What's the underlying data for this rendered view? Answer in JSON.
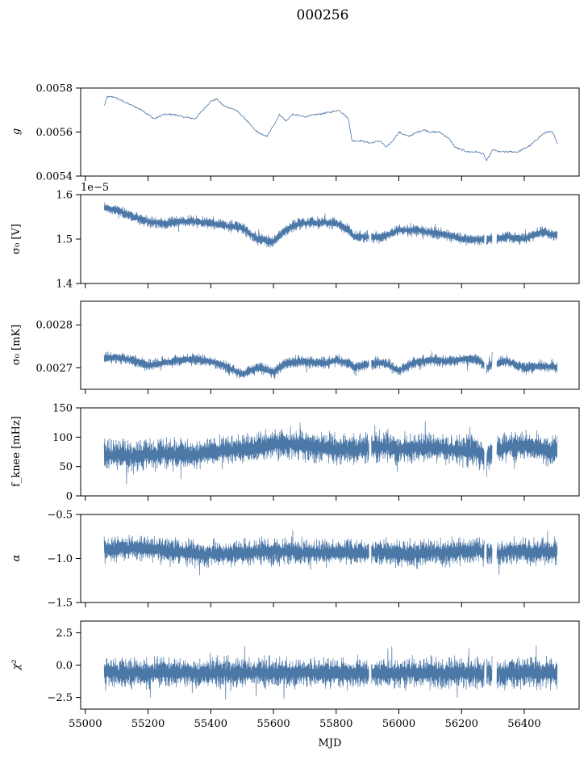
{
  "figure": {
    "title": "000256",
    "xlabel": "MJD"
  },
  "chart_data": [
    {
      "type": "line",
      "panel": "g",
      "ylabel": "g",
      "ylim": [
        0.0054,
        0.0058
      ],
      "yticks": [
        0.0054,
        0.0056,
        0.0058
      ],
      "ytick_labels": [
        "0.0054",
        "0.0056",
        "0.0058"
      ],
      "offset_text": "",
      "series": [
        {
          "kind": "smooth",
          "x": [
            55060,
            55070,
            55090,
            55120,
            55150,
            55180,
            55200,
            55220,
            55250,
            55280,
            55310,
            55350,
            55400,
            55420,
            55440,
            55480,
            55510,
            55540,
            55560,
            55580,
            55600,
            55620,
            55640,
            55660,
            55700,
            55740,
            55780,
            55810,
            55840,
            55850,
            55880,
            55910,
            55940,
            55960,
            55980,
            56000,
            56030,
            56060,
            56080,
            56100,
            56130,
            56160,
            56180,
            56200,
            56220,
            56250,
            56270,
            56280,
            56300,
            56320,
            56350,
            56380,
            56420,
            56450,
            56470,
            56490,
            56505
          ],
          "y": [
            0.00572,
            0.00576,
            0.00576,
            0.00574,
            0.00572,
            0.0057,
            0.00568,
            0.00566,
            0.00568,
            0.00568,
            0.00567,
            0.00566,
            0.00574,
            0.00575,
            0.00572,
            0.0057,
            0.00566,
            0.00561,
            0.00559,
            0.00558,
            0.00563,
            0.00568,
            0.00565,
            0.00568,
            0.00567,
            0.00568,
            0.00569,
            0.0057,
            0.00566,
            0.00556,
            0.00556,
            0.00555,
            0.00556,
            0.00553,
            0.00556,
            0.0056,
            0.00558,
            0.0056,
            0.00561,
            0.0056,
            0.0056,
            0.00557,
            0.00553,
            0.00552,
            0.00551,
            0.00551,
            0.0055,
            0.00547,
            0.00552,
            0.00551,
            0.00551,
            0.00551,
            0.00554,
            0.00558,
            0.0056,
            0.0056,
            0.00555
          ]
        }
      ]
    },
    {
      "type": "line",
      "panel": "sigma0_V",
      "ylabel": "σ₀ [V]",
      "ylim": [
        1.4,
        1.6
      ],
      "yticks": [
        1.4,
        1.5,
        1.6
      ],
      "ytick_labels": [
        "1.4",
        "1.5",
        "1.6"
      ],
      "offset_text": "1e−5",
      "series": [
        {
          "kind": "band",
          "x": [
            55060,
            55100,
            55150,
            55200,
            55250,
            55300,
            55350,
            55400,
            55450,
            55500,
            55550,
            55600,
            55640,
            55680,
            55720,
            55760,
            55800,
            55840,
            55860,
            55900,
            55950,
            56000,
            56050,
            56100,
            56150,
            56200,
            56250,
            56280,
            56300,
            56350,
            56400,
            56450,
            56505
          ],
          "y": [
            1.57,
            1.565,
            1.55,
            1.54,
            1.535,
            1.54,
            1.54,
            1.535,
            1.53,
            1.525,
            1.5,
            1.495,
            1.52,
            1.535,
            1.537,
            1.537,
            1.535,
            1.52,
            1.505,
            1.505,
            1.505,
            1.52,
            1.52,
            1.515,
            1.51,
            1.5,
            1.5,
            1.497,
            1.5,
            1.505,
            1.5,
            1.515,
            1.51
          ],
          "spread": 0.012
        }
      ]
    },
    {
      "type": "line",
      "panel": "sigma0_mK",
      "ylabel": "σ₀ [mK]",
      "ylim": [
        0.00265,
        0.002855
      ],
      "yticks": [
        0.0027,
        0.0028
      ],
      "ytick_labels": [
        "0.0027",
        "0.0028"
      ],
      "offset_text": "",
      "series": [
        {
          "kind": "band",
          "x": [
            55060,
            55100,
            55150,
            55200,
            55250,
            55300,
            55350,
            55400,
            55450,
            55500,
            55550,
            55600,
            55640,
            55680,
            55720,
            55760,
            55800,
            55840,
            55860,
            55900,
            55950,
            56000,
            56050,
            56100,
            56150,
            56200,
            56250,
            56280,
            56300,
            56350,
            56400,
            56450,
            56505
          ],
          "y": [
            0.002723,
            0.002725,
            0.002718,
            0.002705,
            0.002712,
            0.002718,
            0.00272,
            0.002715,
            0.002703,
            0.002685,
            0.0027,
            0.00269,
            0.00271,
            0.002715,
            0.002714,
            0.00271,
            0.002718,
            0.002712,
            0.0027,
            0.002708,
            0.002712,
            0.002695,
            0.002712,
            0.002718,
            0.002715,
            0.00272,
            0.00272,
            0.0027,
            0.00271,
            0.002715,
            0.0027,
            0.002705,
            0.0027
          ],
          "spread": 1.25e-05
        }
      ]
    },
    {
      "type": "line",
      "panel": "fknee",
      "ylabel": "f_knee [mHz]",
      "ylim": [
        0,
        150
      ],
      "yticks": [
        0,
        50,
        100,
        150
      ],
      "ytick_labels": [
        "0",
        "50",
        "100",
        "150"
      ],
      "offset_text": "",
      "series": [
        {
          "kind": "band",
          "x": [
            55060,
            55150,
            55250,
            55350,
            55450,
            55550,
            55600,
            55650,
            55700,
            55750,
            55800,
            55850,
            55900,
            55950,
            56000,
            56050,
            56100,
            56150,
            56200,
            56250,
            56280,
            56300,
            56350,
            56400,
            56450,
            56505
          ],
          "y": [
            70,
            68,
            72,
            70,
            78,
            82,
            90,
            88,
            85,
            82,
            80,
            80,
            82,
            85,
            80,
            82,
            82,
            80,
            78,
            75,
            65,
            75,
            85,
            85,
            82,
            75
          ],
          "spread": 24
        }
      ]
    },
    {
      "type": "line",
      "panel": "alpha",
      "ylabel": "α",
      "ylim": [
        -1.5,
        -0.5
      ],
      "yticks": [
        -1.5,
        -1.0,
        -0.5
      ],
      "ytick_labels": [
        "−1.5",
        "−1.0",
        "−0.5"
      ],
      "offset_text": "",
      "series": [
        {
          "kind": "band",
          "x": [
            55060,
            55150,
            55250,
            55350,
            55450,
            55550,
            55650,
            55750,
            55850,
            55950,
            56050,
            56150,
            56250,
            56300,
            56350,
            56450,
            56505
          ],
          "y": [
            -0.9,
            -0.88,
            -0.9,
            -0.95,
            -0.95,
            -0.92,
            -0.92,
            -0.94,
            -0.93,
            -0.93,
            -0.95,
            -0.93,
            -0.9,
            -0.95,
            -0.92,
            -0.92,
            -0.92
          ],
          "spread": 0.14
        }
      ]
    },
    {
      "type": "line",
      "panel": "chi2",
      "ylabel": "χ²",
      "ylim": [
        -3.4,
        3.4
      ],
      "yticks": [
        -2.5,
        0.0,
        2.5
      ],
      "ytick_labels": [
        "−2.5",
        "0.0",
        "2.5"
      ],
      "offset_text": "",
      "series": [
        {
          "kind": "band",
          "x": [
            55060,
            55300,
            55600,
            55900,
            56200,
            56505
          ],
          "y": [
            -0.6,
            -0.6,
            -0.6,
            -0.6,
            -0.6,
            -0.6
          ],
          "spread": 1.1
        }
      ]
    }
  ],
  "xaxis": {
    "xlim": [
      54985,
      56575
    ],
    "ticks": [
      55000,
      55200,
      55400,
      55600,
      55800,
      56000,
      56200,
      56400
    ],
    "tick_labels": [
      "55000",
      "55200",
      "55400",
      "55600",
      "55800",
      "56000",
      "56200",
      "56400"
    ],
    "gaps": [
      [
        55905,
        55912
      ],
      [
        56272,
        56280
      ],
      [
        56298,
        56312
      ]
    ]
  },
  "colors": {
    "line": "#4c78a8",
    "axes": "#000000",
    "background": "#ffffff"
  }
}
